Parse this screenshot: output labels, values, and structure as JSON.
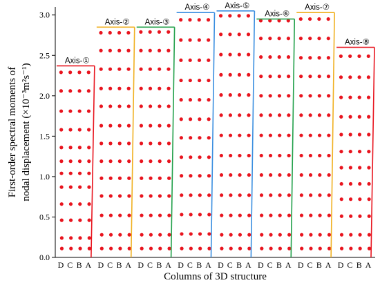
{
  "chart_data": {
    "type": "scatter",
    "xlabel": "Columns of  3D structure",
    "ylabel_lines": [
      "First-order spectral moments of",
      "nodal displacement (×10⁻³m²s⁻¹)"
    ],
    "ylim": [
      0,
      3.1
    ],
    "yticks": [
      "0.0",
      "0.5",
      "1.0",
      "1.5",
      "2.0",
      "2.5",
      "3.0"
    ],
    "column_labels": [
      "D",
      "C",
      "B",
      "A"
    ],
    "marker_color": "#e8141e",
    "groups": [
      {
        "label": "Axis-①",
        "color": "#e8141e",
        "top": 2.37,
        "levels": [
          0.11,
          0.24,
          0.46,
          0.66,
          0.87,
          1.04,
          1.19,
          1.36,
          1.58,
          1.81,
          2.06,
          2.29
        ]
      },
      {
        "label": "Axis-②",
        "color": "#f0b020",
        "top": 2.85,
        "levels": [
          0.11,
          0.28,
          0.52,
          0.76,
          0.98,
          1.19,
          1.41,
          1.63,
          1.87,
          2.09,
          2.33,
          2.56,
          2.78
        ]
      },
      {
        "label": "Axis-③",
        "color": "#22a04a",
        "top": 2.85,
        "levels": [
          0.11,
          0.28,
          0.52,
          0.76,
          0.98,
          1.19,
          1.41,
          1.63,
          1.87,
          2.09,
          2.33,
          2.56,
          2.79
        ]
      },
      {
        "label": "Axis-④",
        "color": "#3a8ee0",
        "top": 3.03,
        "levels": [
          0.11,
          0.29,
          0.53,
          0.77,
          1.01,
          1.24,
          1.48,
          1.71,
          1.95,
          2.19,
          2.44,
          2.69,
          2.94
        ]
      },
      {
        "label": "Axis-⑤",
        "color": "#3a8ee0",
        "top": 3.05,
        "levels": [
          0.11,
          0.28,
          0.52,
          0.77,
          1.02,
          1.26,
          1.51,
          1.76,
          2.01,
          2.26,
          2.51,
          2.76,
          2.99
        ]
      },
      {
        "label": "Axis-⑥",
        "color": "#22a04a",
        "top": 2.95,
        "levels": [
          0.11,
          0.28,
          0.52,
          0.77,
          1.02,
          1.26,
          1.51,
          1.76,
          2.0,
          2.24,
          2.48,
          2.71,
          2.93
        ]
      },
      {
        "label": "Axis-⑦",
        "color": "#f0b020",
        "top": 3.03,
        "levels": [
          0.11,
          0.28,
          0.52,
          0.77,
          1.02,
          1.26,
          1.51,
          1.76,
          2.0,
          2.24,
          2.47,
          2.71,
          2.95
        ]
      },
      {
        "label": "Axis-⑧",
        "color": "#e8141e",
        "top": 2.6,
        "levels": [
          0.11,
          0.28,
          0.51,
          0.72,
          0.91,
          1.11,
          1.31,
          1.52,
          1.74,
          1.98,
          2.23,
          2.49
        ]
      }
    ]
  }
}
